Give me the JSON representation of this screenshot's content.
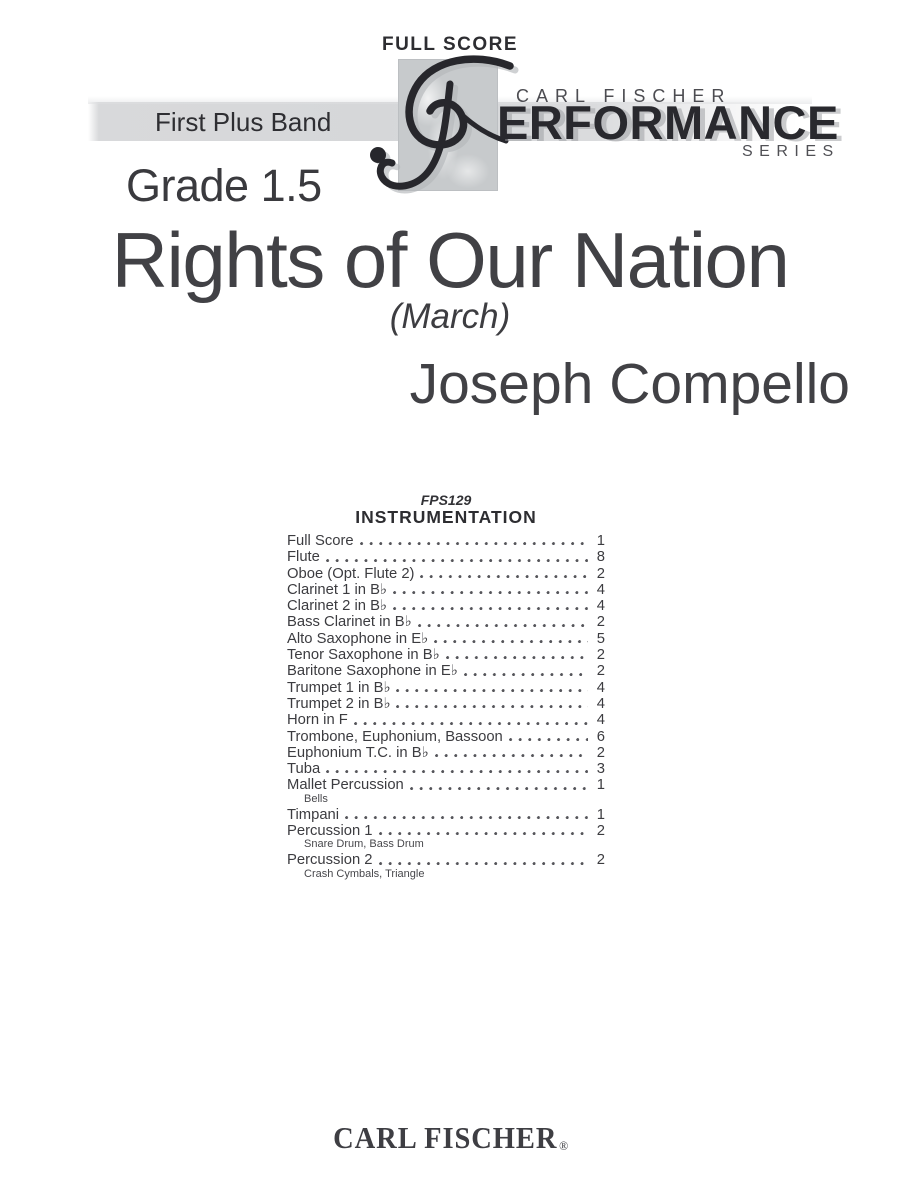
{
  "header": {
    "full_score": "FULL SCORE",
    "band_name": "First Plus Band",
    "brand_top": "CARL FISCHER",
    "brand_main_rest": "ERFORMANCE",
    "brand_sub": "SERIES",
    "grade": "Grade 1.5"
  },
  "title_block": {
    "title": "Rights of Our Nation",
    "subtitle": "(March)",
    "composer": "Joseph Compello"
  },
  "instrumentation": {
    "catalog_no": "FPS129",
    "heading": "INSTRUMENTATION",
    "items": [
      {
        "label": "Full Score",
        "count": "1"
      },
      {
        "label": "Flute",
        "count": "8"
      },
      {
        "label": "Oboe (Opt. Flute 2)",
        "count": "2"
      },
      {
        "label": "Clarinet 1 in B♭",
        "count": "4"
      },
      {
        "label": "Clarinet 2 in B♭",
        "count": "4"
      },
      {
        "label": "Bass Clarinet in B♭",
        "count": "2"
      },
      {
        "label": "Alto Saxophone in E♭",
        "count": "5"
      },
      {
        "label": "Tenor Saxophone in B♭",
        "count": "2"
      },
      {
        "label": "Baritone Saxophone in E♭",
        "count": "2"
      },
      {
        "label": "Trumpet 1 in B♭",
        "count": "4"
      },
      {
        "label": "Trumpet 2 in B♭",
        "count": "4"
      },
      {
        "label": "Horn in F",
        "count": "4"
      },
      {
        "label": "Trombone, Euphonium, Bassoon",
        "count": "6"
      },
      {
        "label": "Euphonium T.C. in B♭",
        "count": "2"
      },
      {
        "label": "Tuba",
        "count": "3"
      },
      {
        "label": "Mallet Percussion",
        "count": "1",
        "sub": "Bells"
      },
      {
        "label": "Timpani",
        "count": "1"
      },
      {
        "label": "Percussion 1",
        "count": "2",
        "sub": "Snare Drum, Bass Drum"
      },
      {
        "label": "Percussion 2",
        "count": "2",
        "sub": "Crash Cymbals, Triangle"
      }
    ]
  },
  "footer": {
    "publisher": "CARL FISCHER",
    "registered": "®"
  },
  "colors": {
    "text_dark": "#3a3a3e",
    "brand_dark": "#29292e",
    "band_gray": "#d6d7d9",
    "box_gray": "#c7cacc"
  }
}
